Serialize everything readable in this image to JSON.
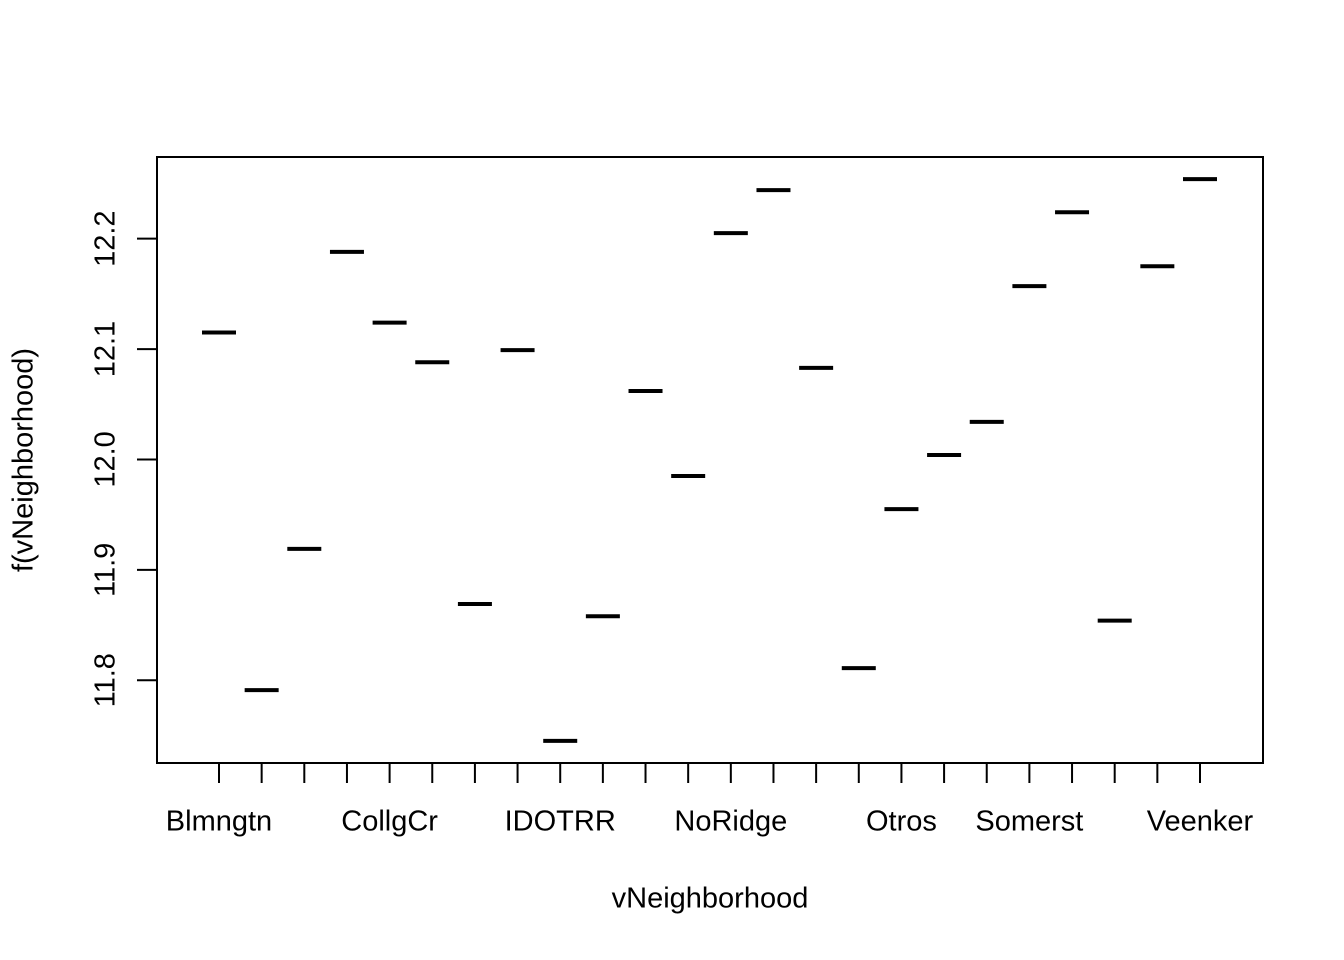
{
  "chart_data": {
    "type": "segment",
    "x_label": "vNeighborhood",
    "y_label": "f(vNeighborhood)",
    "categories": [
      "Blmngtn",
      null,
      null,
      null,
      "CollgCr",
      null,
      null,
      null,
      "IDOTRR",
      null,
      null,
      null,
      "NoRidge",
      null,
      null,
      null,
      "Otros",
      null,
      null,
      "Somerst",
      null,
      null,
      null,
      "Veenker"
    ],
    "values": [
      12.115,
      11.791,
      11.919,
      12.188,
      12.124,
      12.088,
      11.869,
      12.099,
      11.745,
      11.858,
      12.062,
      11.985,
      12.205,
      12.244,
      12.083,
      11.811,
      11.955,
      12.004,
      12.034,
      12.157,
      12.224,
      11.854,
      12.175,
      12.254
    ],
    "color": "#000000",
    "ylim": [
      11.725,
      12.274
    ],
    "yticks": [
      11.8,
      11.9,
      {
        "value": 12,
        "label": "12.0"
      },
      12.1,
      12.2
    ]
  }
}
